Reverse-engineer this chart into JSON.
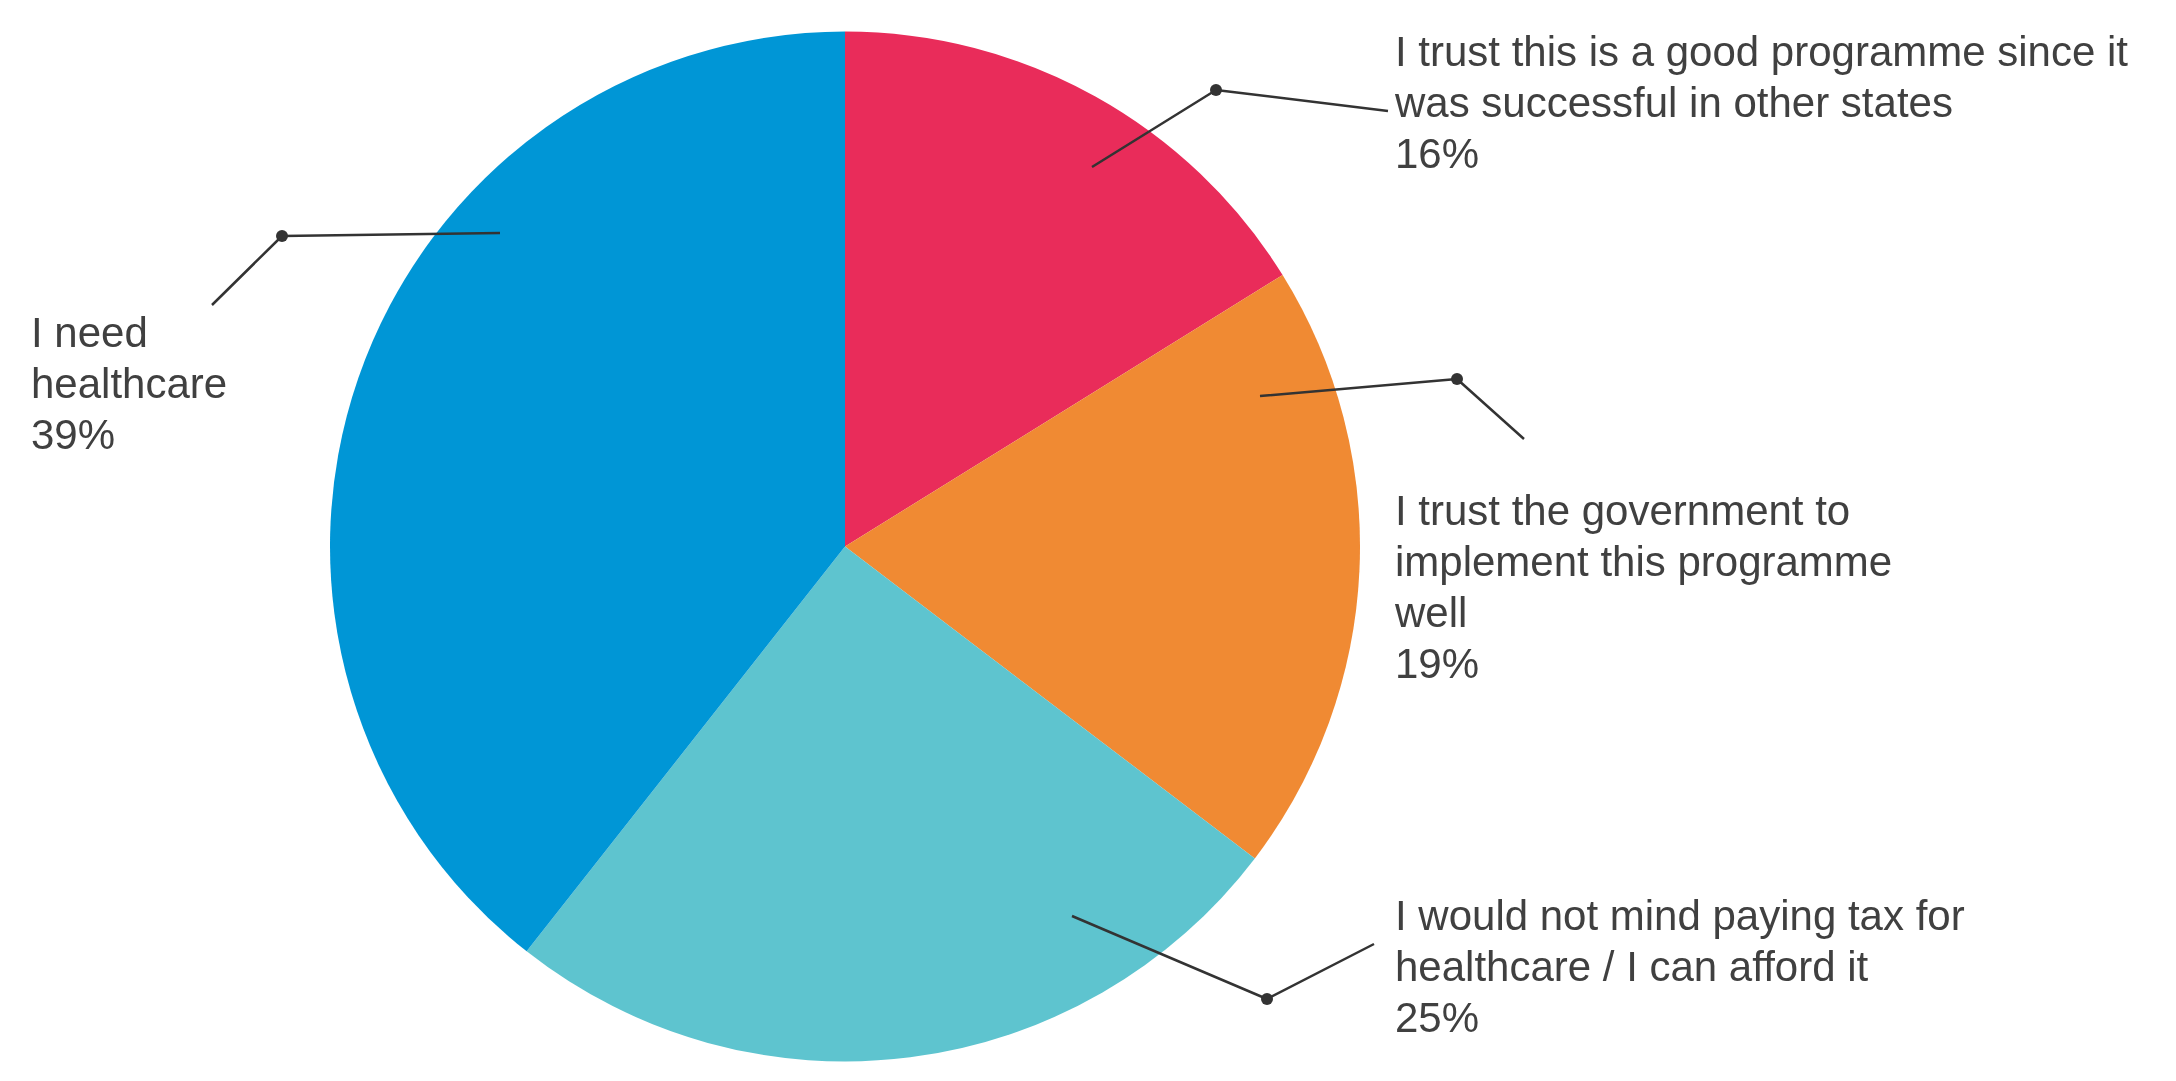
{
  "chart_data": {
    "type": "pie",
    "categories": [
      "I trust this is a good programme since it was successful in other states",
      "I trust the government to implement this programme well",
      "I would not mind paying tax for healthcare / I can afford it",
      "I need healthcare"
    ],
    "values": [
      16,
      19,
      25,
      39
    ],
    "value_labels": [
      "16%",
      "19%",
      "25%",
      "39%"
    ],
    "colors": [
      "#e92c5a",
      "#f08a33",
      "#5ec4cf",
      "#0096d6"
    ],
    "legend": false
  }
}
